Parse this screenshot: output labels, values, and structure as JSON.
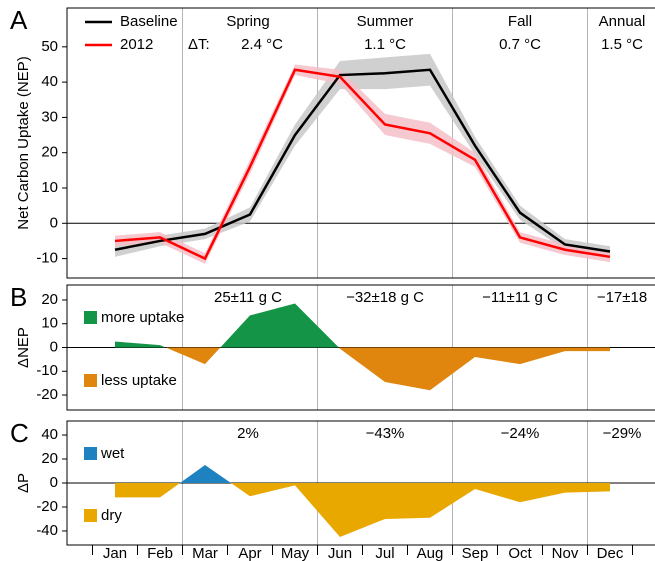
{
  "chart_data": [
    {
      "type": "line",
      "panel_label": "A",
      "ylabel": "Net Carbon Uptake (NEP)",
      "ylim": [
        -15.5,
        61
      ],
      "yticks": [
        -10,
        0,
        10,
        20,
        30,
        40,
        50
      ],
      "seasons": [
        "Spring",
        "Summer",
        "Fall",
        "Annual"
      ],
      "delta_t_label": "ΔT:",
      "delta_t": [
        "2.4 °C",
        "1.1 °C",
        "0.7 °C",
        "1.5 °C"
      ],
      "series": [
        {
          "name": "Baseline",
          "color": "#000000",
          "band_color": "#c8c8c8",
          "values": [
            -7.5,
            -5,
            -3,
            2.5,
            25,
            42,
            42.5,
            43.5,
            22,
            3,
            -6,
            -8
          ],
          "errors": [
            2,
            1.5,
            1.5,
            2,
            3,
            4,
            4.5,
            4.5,
            2.5,
            2,
            1.5,
            1.5
          ]
        },
        {
          "name": "2012",
          "color": "#ff0000",
          "band_color": "#f5c0c8",
          "values": [
            -5,
            -4,
            -10,
            16,
            43.5,
            41.5,
            28,
            25.5,
            18,
            -4,
            -7.5,
            -9.5
          ],
          "errors": [
            1.5,
            1.5,
            1.5,
            2,
            1.5,
            2,
            3,
            3,
            2,
            1.5,
            1.5,
            1.5
          ]
        }
      ]
    },
    {
      "type": "area",
      "panel_label": "B",
      "ylabel": "ΔNEP",
      "ylim": [
        -26.3,
        26.3
      ],
      "yticks": [
        -20,
        -10,
        0,
        10,
        20
      ],
      "values": [
        2.5,
        1,
        -7,
        13.5,
        18.5,
        -0.5,
        -14.5,
        -18,
        -4,
        -7,
        -1.5,
        -1.5
      ],
      "positive": {
        "name": "more uptake",
        "color": "#139447"
      },
      "negative": {
        "name": "less uptake",
        "color": "#e0860f"
      },
      "annotations": [
        "25±11 g C",
        "−32±18 g C",
        "−11±11 g C",
        "−17±18"
      ]
    },
    {
      "type": "area",
      "panel_label": "C",
      "ylabel": "ΔP",
      "ylim": [
        -51.7,
        51.7
      ],
      "yticks": [
        -40,
        -20,
        0,
        20,
        40
      ],
      "values": [
        -12,
        -12,
        15,
        -11,
        -2,
        -45,
        -30,
        -29,
        -5,
        -16,
        -8,
        -7
      ],
      "positive": {
        "name": "wet",
        "color": "#1f82c0"
      },
      "negative": {
        "name": "dry",
        "color": "#e9a800"
      },
      "annotations": [
        "2%",
        "−43%",
        "−24%",
        "−29%"
      ],
      "categories": [
        "Jan",
        "Feb",
        "Mar",
        "Apr",
        "May",
        "Jun",
        "Jul",
        "Aug",
        "Sep",
        "Oct",
        "Nov",
        "Dec"
      ]
    }
  ]
}
